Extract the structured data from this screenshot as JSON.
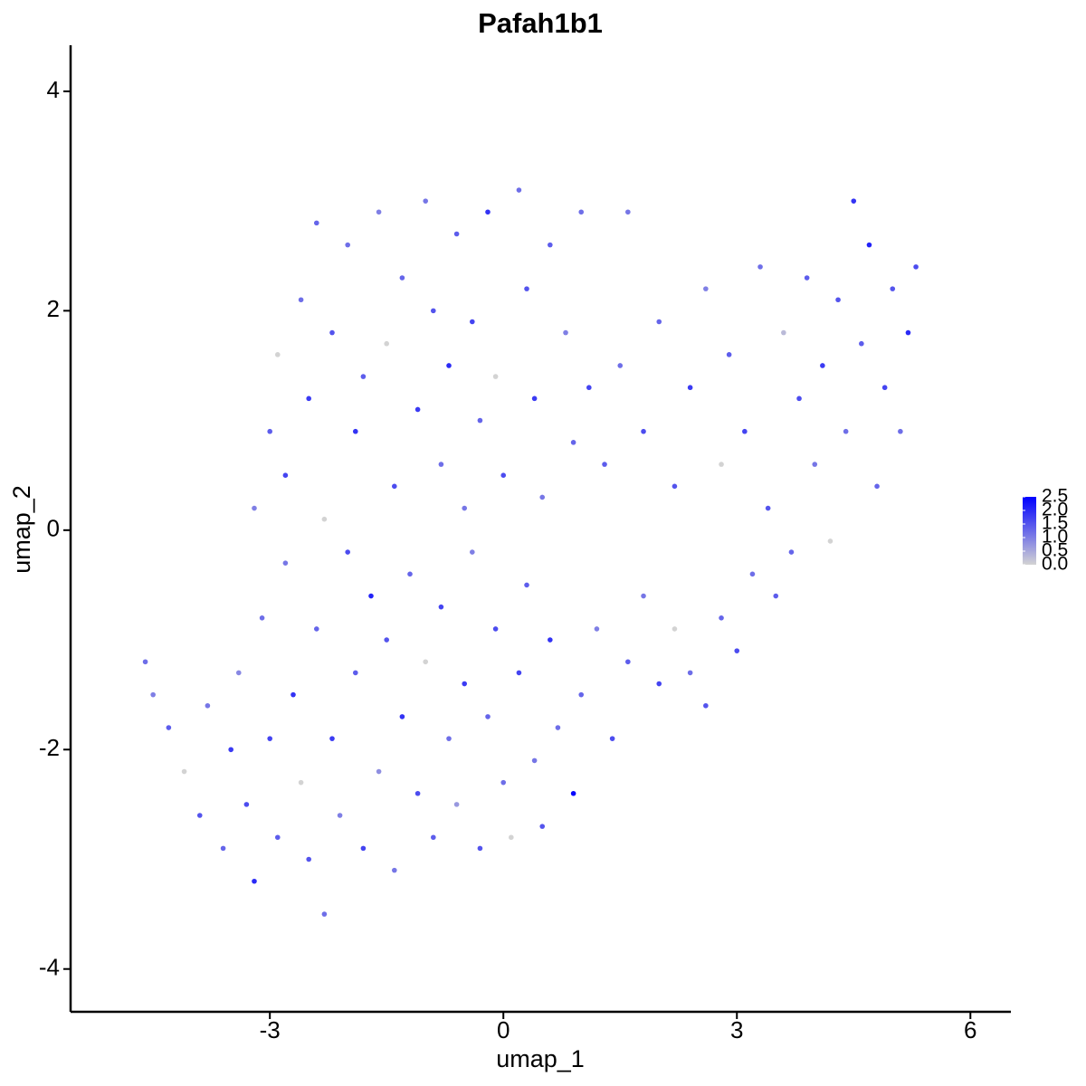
{
  "chart_data": {
    "type": "scatter",
    "title": "Pafah1b1",
    "x_label": "umap_1",
    "y_label": "umap_2",
    "x": [
      -4.6,
      -4.5,
      -4.3,
      -4.1,
      -3.9,
      -3.8,
      -3.6,
      -3.5,
      -3.4,
      -3.3,
      -3.2,
      -3.1,
      -3.0,
      -2.9,
      -2.8,
      -2.7,
      -2.6,
      -2.5,
      -2.4,
      -2.3,
      -2.2,
      -2.1,
      -2.0,
      -1.9,
      -1.8,
      -1.7,
      -1.6,
      -1.5,
      -1.4,
      -1.3,
      -1.2,
      -1.1,
      -1.0,
      -0.9,
      -0.8,
      -0.7,
      -0.6,
      -0.5,
      -0.4,
      -0.3,
      -0.2,
      -0.1,
      0.0,
      0.1,
      0.2,
      0.3,
      0.4,
      0.5,
      0.6,
      0.7,
      0.9,
      1.0,
      1.2,
      1.4,
      1.6,
      1.8,
      2.0,
      2.2,
      2.4,
      2.6,
      2.8,
      3.0,
      3.2,
      3.5,
      -3.2,
      -3.0,
      -2.9,
      -2.8,
      -2.6,
      -2.5,
      -2.4,
      -2.3,
      -2.2,
      -2.0,
      -1.9,
      -1.8,
      -1.6,
      -1.5,
      -1.4,
      -1.3,
      -1.1,
      -1.0,
      -0.9,
      -0.8,
      -0.7,
      -0.6,
      -0.5,
      -0.4,
      -0.3,
      -0.2,
      -0.1,
      0.0,
      0.2,
      0.3,
      0.4,
      0.5,
      0.6,
      0.8,
      0.9,
      1.0,
      1.1,
      1.3,
      1.5,
      1.6,
      1.8,
      2.0,
      2.2,
      2.4,
      2.6,
      2.8,
      2.9,
      3.1,
      3.3,
      3.4,
      3.6,
      3.7,
      3.8,
      3.9,
      4.0,
      4.1,
      4.2,
      4.3,
      4.4,
      4.5,
      4.6,
      4.7,
      4.8,
      4.9,
      5.0,
      5.1,
      5.2,
      5.3
    ],
    "y": [
      -1.2,
      -1.5,
      -1.8,
      -2.2,
      -2.6,
      -1.6,
      -2.9,
      -2.0,
      -1.3,
      -2.5,
      -3.2,
      -0.8,
      -1.9,
      -2.8,
      -0.3,
      -1.5,
      -2.3,
      -3.0,
      -0.9,
      -3.5,
      -1.9,
      -2.6,
      -0.2,
      -1.3,
      -2.9,
      -0.6,
      -2.2,
      -1.0,
      -3.1,
      -1.7,
      -0.4,
      -2.4,
      -1.2,
      -2.8,
      -0.7,
      -1.9,
      -2.5,
      -1.4,
      -0.2,
      -2.9,
      -1.7,
      -0.9,
      -2.3,
      -2.8,
      -1.3,
      -0.5,
      -2.1,
      -2.7,
      -1.0,
      -1.8,
      -2.4,
      -1.5,
      -0.9,
      -1.9,
      -1.2,
      -0.6,
      -1.4,
      -0.9,
      -1.3,
      -1.6,
      -0.8,
      -1.1,
      -0.4,
      -0.6,
      0.2,
      0.9,
      1.6,
      0.5,
      2.1,
      1.2,
      2.8,
      0.1,
      1.8,
      2.6,
      0.9,
      1.4,
      2.9,
      1.7,
      0.4,
      2.3,
      1.1,
      3.0,
      2.0,
      0.6,
      1.5,
      2.7,
      0.2,
      1.9,
      1.0,
      2.9,
      1.4,
      0.5,
      3.1,
      2.2,
      1.2,
      0.3,
      2.6,
      1.8,
      0.8,
      2.9,
      1.3,
      0.6,
      1.5,
      2.9,
      0.9,
      1.9,
      0.4,
      1.3,
      2.2,
      0.6,
      1.6,
      0.9,
      2.4,
      0.2,
      1.8,
      -0.2,
      1.2,
      2.3,
      0.6,
      1.5,
      -0.1,
      2.1,
      0.9,
      3.0,
      1.7,
      2.6,
      0.4,
      1.3,
      2.2,
      0.9,
      1.8,
      2.4
    ],
    "values": [
      1.2,
      1.0,
      1.4,
      0,
      1.5,
      1.1,
      1.3,
      1.8,
      0.9,
      1.6,
      2.0,
      1.2,
      1.7,
      1.4,
      1.1,
      1.9,
      0,
      1.5,
      1.3,
      1.2,
      1.8,
      1.0,
      1.6,
      1.4,
      1.7,
      2.1,
      0.8,
      1.5,
      1.1,
      1.9,
      1.3,
      1.6,
      0,
      1.4,
      1.7,
      1.2,
      0.7,
      1.8,
      1.0,
      1.5,
      1.3,
      1.6,
      1.2,
      0,
      1.7,
      1.4,
      1.1,
      1.5,
      1.9,
      1.2,
      2.4,
      1.3,
      1.0,
      1.6,
      1.4,
      1.1,
      1.7,
      0,
      1.2,
      1.5,
      1.3,
      1.6,
      1.2,
      1.4,
      1.0,
      1.4,
      0,
      1.7,
      1.2,
      1.8,
      1.3,
      0,
      1.5,
      1.2,
      1.9,
      1.4,
      1.0,
      0,
      1.6,
      1.3,
      1.8,
      1.1,
      1.5,
      1.2,
      2.0,
      1.4,
      1.1,
      1.7,
      1.3,
      1.9,
      0,
      1.6,
      1.2,
      1.5,
      1.8,
      1.1,
      1.4,
      1.0,
      1.3,
      1.2,
      1.7,
      1.4,
      1.2,
      1.1,
      1.6,
      1.3,
      1.5,
      1.8,
      1.0,
      0,
      1.4,
      1.7,
      1.2,
      1.5,
      0.3,
      1.3,
      1.6,
      1.4,
      1.1,
      1.8,
      0,
      1.5,
      1.2,
      1.9,
      1.4,
      2.1,
      1.3,
      1.7,
      1.5,
      1.2,
      2.0,
      1.6
    ],
    "low_color": "#d3d3d3",
    "high_color": "#0000ff",
    "xlim": [
      -5.56,
      6.52
    ],
    "xticks": [
      -3,
      0,
      3,
      6
    ],
    "ylim": [
      -4.39,
      4.42
    ],
    "yticks": [
      -4,
      -2,
      0,
      2,
      4
    ],
    "color_lim": [
      0,
      2.5
    ],
    "color_ticks": [
      {
        "value": 0,
        "label": "0.0"
      },
      0.5,
      {
        "value": 1,
        "label": "1.0"
      },
      1.5,
      {
        "value": 2,
        "label": "2.0"
      },
      2.5
    ],
    "grid": false
  }
}
